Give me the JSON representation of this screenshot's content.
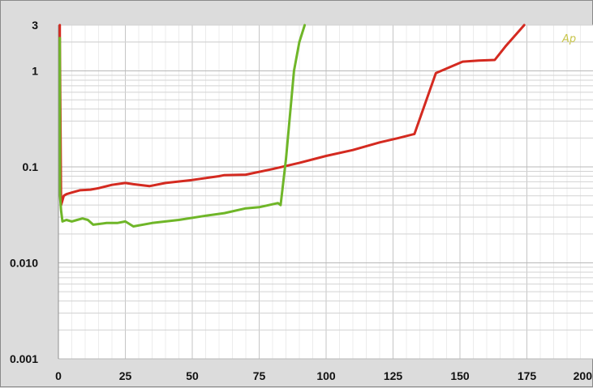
{
  "chart_data": {
    "type": "line",
    "title": "",
    "xlabel": "",
    "ylabel": "",
    "xlim": [
      0,
      200
    ],
    "ylim": [
      0.001,
      3
    ],
    "y_scale": "log",
    "grid": true,
    "x_ticks": [
      0,
      25,
      50,
      75,
      100,
      125,
      150,
      175,
      200
    ],
    "x_tick_labels": [
      "0",
      "25",
      "50",
      "75",
      "100",
      "125",
      "150",
      "175",
      "200"
    ],
    "y_ticks": [
      3,
      1,
      0.1,
      0.01,
      0.001
    ],
    "y_tick_labels": [
      "3",
      "1",
      "0.1",
      "0.010",
      "0.001"
    ],
    "watermark": "Ap",
    "series": [
      {
        "color": "#d42a20",
        "points": [
          [
            0.5,
            3
          ],
          [
            0.5,
            2.5
          ],
          [
            1,
            0.04
          ],
          [
            2,
            0.05
          ],
          [
            3,
            0.052
          ],
          [
            5,
            0.054
          ],
          [
            8,
            0.057
          ],
          [
            12,
            0.058
          ],
          [
            15,
            0.06
          ],
          [
            20,
            0.065
          ],
          [
            25,
            0.068
          ],
          [
            28,
            0.066
          ],
          [
            34,
            0.063
          ],
          [
            40,
            0.068
          ],
          [
            50,
            0.073
          ],
          [
            60,
            0.08
          ],
          [
            62,
            0.082
          ],
          [
            70,
            0.083
          ],
          [
            80,
            0.095
          ],
          [
            90,
            0.11
          ],
          [
            100,
            0.13
          ],
          [
            110,
            0.15
          ],
          [
            120,
            0.18
          ],
          [
            127,
            0.2
          ],
          [
            133,
            0.22
          ],
          [
            141,
            0.95
          ],
          [
            151,
            1.25
          ],
          [
            157,
            1.28
          ],
          [
            163,
            1.3
          ],
          [
            167,
            1.8
          ],
          [
            174,
            3
          ]
        ]
      },
      {
        "color": "#6fb628",
        "points": [
          [
            0.5,
            2.2
          ],
          [
            0.6,
            0.05
          ],
          [
            1,
            0.035
          ],
          [
            1.5,
            0.027
          ],
          [
            3,
            0.028
          ],
          [
            5,
            0.027
          ],
          [
            7,
            0.028
          ],
          [
            9,
            0.029
          ],
          [
            11,
            0.028
          ],
          [
            13,
            0.025
          ],
          [
            18,
            0.026
          ],
          [
            22,
            0.026
          ],
          [
            25,
            0.027
          ],
          [
            28,
            0.024
          ],
          [
            35,
            0.026
          ],
          [
            45,
            0.028
          ],
          [
            55,
            0.031
          ],
          [
            62,
            0.033
          ],
          [
            70,
            0.037
          ],
          [
            75,
            0.038
          ],
          [
            82,
            0.042
          ],
          [
            83,
            0.04
          ],
          [
            85,
            0.12
          ],
          [
            88,
            1
          ],
          [
            90,
            2
          ],
          [
            92,
            3
          ]
        ]
      }
    ]
  }
}
